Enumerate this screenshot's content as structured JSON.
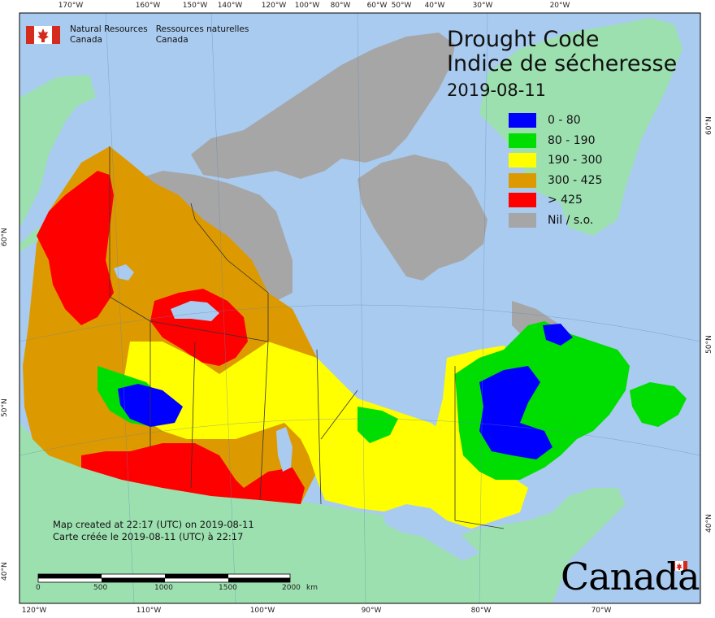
{
  "header": {
    "agency_en_line1": "Natural Resources",
    "agency_en_line2": "Canada",
    "agency_fr_line1": "Ressources naturelles",
    "agency_fr_line2": "Canada"
  },
  "title": {
    "en": "Drought Code",
    "fr": "Indice de sécheresse",
    "date": "2019-08-11"
  },
  "legend": [
    {
      "label": "0 - 80",
      "color": "#0000ff"
    },
    {
      "label": "80 - 190",
      "color": "#00dd00"
    },
    {
      "label": "190 - 300",
      "color": "#ffff00"
    },
    {
      "label": "300 - 425",
      "color": "#dd9900"
    },
    {
      "label": "> 425",
      "color": "#ff0000"
    },
    {
      "label": "Nil / s.o.",
      "color": "#a6a6a6"
    }
  ],
  "credit": {
    "en": "Map created at 22:17 (UTC) on 2019-08-11",
    "fr": "Carte créée le 2019-08-11 (UTC) à 22:17"
  },
  "scale_bar": {
    "labels": [
      "0",
      "500",
      "1000",
      "1500",
      "2000"
    ],
    "unit": "km"
  },
  "axis": {
    "top": [
      "170°W",
      "160°W",
      "150°W",
      "140°W",
      "120°W",
      "100°W",
      "80°W",
      "60°W",
      "50°W",
      "40°W",
      "30°W",
      "20°W"
    ],
    "bottom": [
      "120°W",
      "110°W",
      "100°W",
      "90°W",
      "80°W",
      "70°W"
    ],
    "left": [
      "60°N",
      "50°N",
      "40°N"
    ],
    "right": [
      "60°N",
      "50°N",
      "40°N"
    ]
  },
  "wordmark": "Canada",
  "colors": {
    "ocean": "#a9cbef",
    "foreign_land": "#9de0b0",
    "nil": "#a6a6a6"
  }
}
